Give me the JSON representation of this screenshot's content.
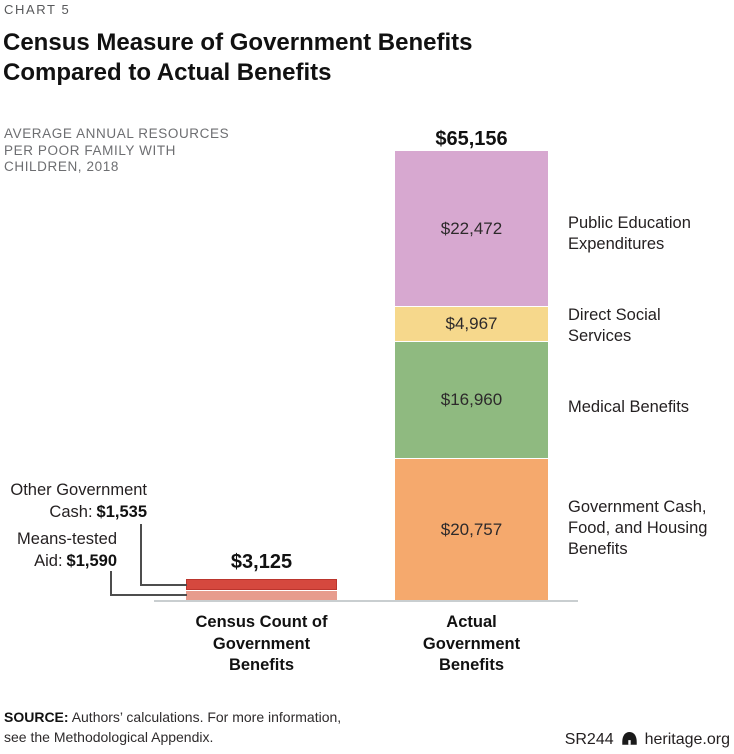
{
  "kicker": "CHART 5",
  "title": "Census Measure of Government Benefits\nCompared to Actual Benefits",
  "subtitle": "AVERAGE ANNUAL RESOURCES\nPER POOR FAMILY WITH\nCHILDREN, 2018",
  "chart_data": {
    "type": "bar",
    "stacked": true,
    "title": "Census Measure of Government Benefits Compared to Actual Benefits",
    "subtitle": "Average annual resources per poor family with children, 2018",
    "unit": "USD",
    "legend": "none",
    "gridlines": false,
    "categories": [
      "Census Count of\nGovernment\nBenefits",
      "Actual\nGovernment\nBenefits"
    ],
    "bars": [
      {
        "category": "Census Count of Government Benefits",
        "total": 3125,
        "total_label": "$3,125",
        "segments": [
          {
            "name": "Other Government Cash",
            "value": 1535,
            "value_label": "$1,535",
            "color": "#d5483e"
          },
          {
            "name": "Means-tested Aid",
            "value": 1590,
            "value_label": "$1,590",
            "color": "#e79c8d"
          }
        ]
      },
      {
        "category": "Actual Government Benefits",
        "total": 65156,
        "total_label": "$65,156",
        "segments": [
          {
            "name": "Public Education\nExpenditures",
            "value": 22472,
            "value_label": "$22,472",
            "color": "#d7a8d0"
          },
          {
            "name": "Direct Social\nServices",
            "value": 4967,
            "value_label": "$4,967",
            "color": "#f6d88c"
          },
          {
            "name": "Medical Benefits",
            "value": 16960,
            "value_label": "$16,960",
            "color": "#8fba80"
          },
          {
            "name": "Government Cash,\nFood, and Housing\nBenefits",
            "value": 20757,
            "value_label": "$20,757",
            "color": "#f5a96d"
          }
        ]
      }
    ]
  },
  "callouts": [
    {
      "text": "Other Government\nCash:"
    },
    {
      "text": "Means-tested\nAid:"
    }
  ],
  "footer": {
    "source_label": "SOURCE:",
    "source_text": "Authors’ calculations. For more information,\nsee the Methodological Appendix.",
    "report_id": "SR244",
    "site": "heritage.org"
  }
}
